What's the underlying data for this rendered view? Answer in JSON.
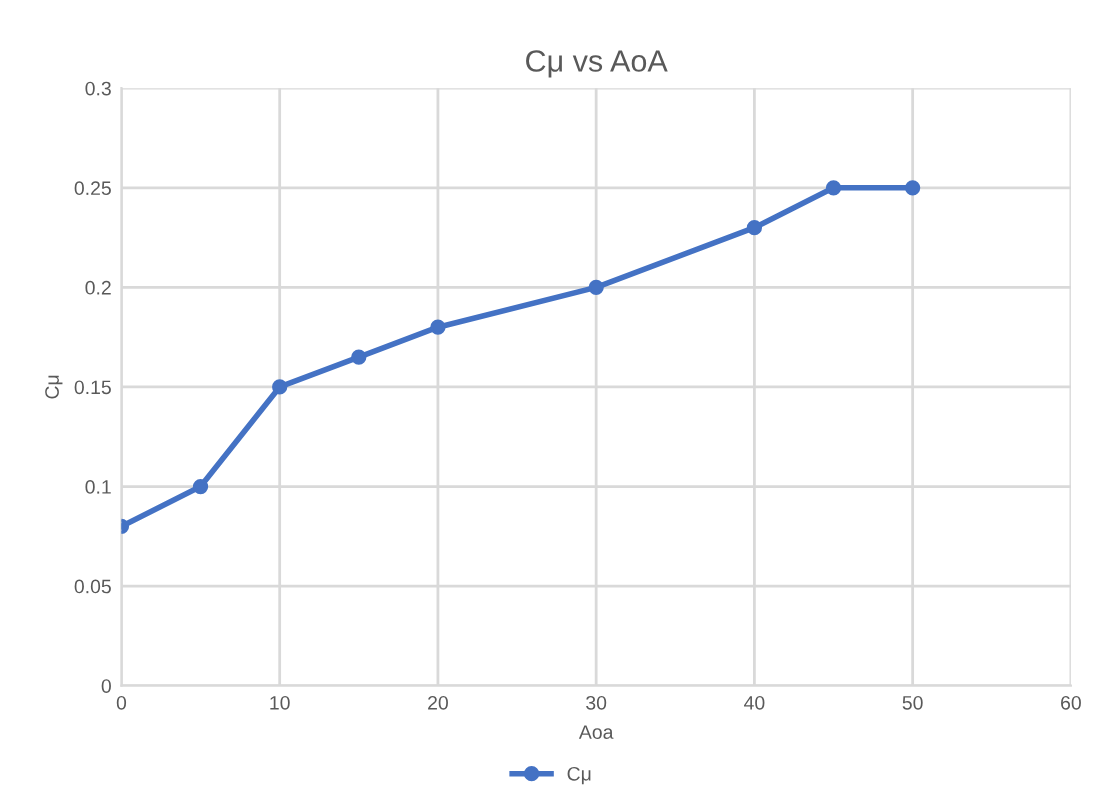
{
  "chart_data": {
    "type": "line",
    "title": "Cμ vs AoA",
    "xlabel": "Aoa",
    "ylabel": "Cμ",
    "x": [
      0,
      5,
      10,
      15,
      20,
      30,
      40,
      45,
      50
    ],
    "series": [
      {
        "name": "Cμ",
        "color": "#4472c4",
        "values": [
          0.08,
          0.1,
          0.15,
          0.165,
          0.18,
          0.2,
          0.23,
          0.25,
          0.25
        ]
      }
    ],
    "xlim": [
      0,
      60
    ],
    "xticks": [
      0,
      10,
      20,
      30,
      40,
      50,
      60
    ],
    "ylim": [
      0,
      0.3
    ],
    "yticks": [
      {
        "value": 0,
        "label": "0"
      },
      0.05,
      0.1,
      0.15,
      0.2,
      0.25,
      0.3
    ],
    "grid": true,
    "legend": "bottom",
    "marker": "circle",
    "line_style": "solid"
  }
}
